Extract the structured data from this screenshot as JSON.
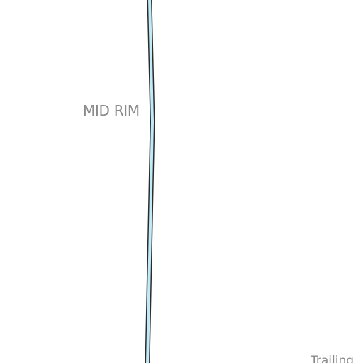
{
  "map": {
    "labels": {
      "mid_rim": "MID RIM",
      "trailing": "Trailing"
    },
    "colors": {
      "background": "#ffffff",
      "route_fill": "#bfeaf6",
      "route_outline": "#2b2b2b",
      "label_text": "#8a8a8a"
    }
  }
}
